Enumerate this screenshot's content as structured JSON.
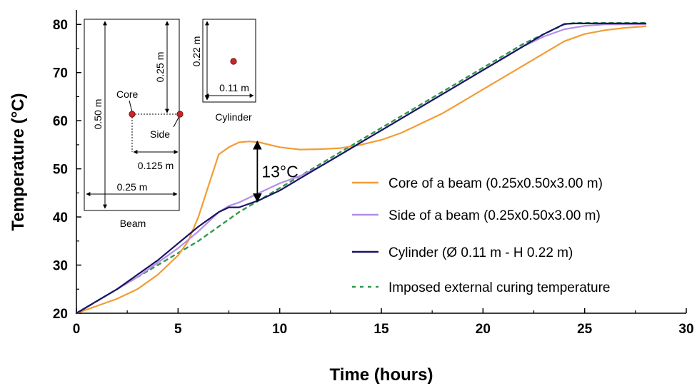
{
  "chart_data": {
    "type": "line",
    "xlabel": "Time (hours)",
    "ylabel": "Temperature (°C)",
    "xlim": [
      0,
      30
    ],
    "ylim": [
      20,
      83
    ],
    "xticks": [
      0,
      5,
      10,
      15,
      20,
      25,
      30
    ],
    "yticks": [
      20,
      30,
      40,
      50,
      60,
      70,
      80
    ],
    "grid": false,
    "legend_position": "right",
    "series": [
      {
        "name": "Core of a beam (0.25x0.50x3.00 m)",
        "color": "#f39c34",
        "dash": "solid",
        "x": [
          0,
          1,
          2,
          3,
          4,
          5,
          5.5,
          6,
          6.5,
          7,
          7.5,
          8,
          8.5,
          9,
          10,
          11,
          12,
          13,
          14,
          15,
          16,
          17,
          18,
          19,
          20,
          21,
          22,
          23,
          24,
          25,
          26,
          27,
          28
        ],
        "y": [
          20,
          21.5,
          23,
          25,
          28,
          32,
          35,
          40,
          46.5,
          53,
          54.5,
          55.5,
          55.7,
          55.5,
          54.5,
          54,
          54.1,
          54.3,
          55,
          56,
          57.5,
          59.5,
          61.5,
          64,
          66.5,
          69,
          71.5,
          74,
          76.5,
          78,
          78.8,
          79.3,
          79.6
        ]
      },
      {
        "name": "Side of a beam (0.25x0.50x3.00 m)",
        "color": "#b38ee8",
        "dash": "solid",
        "x": [
          0,
          1,
          2,
          3,
          4,
          5,
          6,
          7,
          7.5,
          8,
          9,
          10,
          11,
          12,
          13,
          14,
          15,
          16,
          17,
          18,
          19,
          20,
          21,
          22,
          23,
          24,
          25,
          26,
          27,
          28
        ],
        "y": [
          20,
          22.5,
          25,
          27.5,
          30.5,
          33.5,
          37,
          41,
          42.3,
          43,
          45,
          47,
          48.5,
          50.5,
          53,
          55.5,
          58,
          60.5,
          63,
          65.5,
          68,
          70.5,
          73,
          75.5,
          77.5,
          79,
          79.7,
          80,
          80,
          80
        ]
      },
      {
        "name": "Cylinder (Ø 0.11 m - H 0.22 m)",
        "color": "#1a1466",
        "dash": "solid",
        "x": [
          0,
          1,
          2,
          3,
          4,
          5,
          6,
          7,
          7.5,
          8,
          9,
          10,
          11,
          12,
          13,
          14,
          15,
          16,
          17,
          18,
          19,
          20,
          21,
          22,
          23,
          24,
          24.5,
          25,
          26,
          27,
          28
        ],
        "y": [
          20,
          22.5,
          25,
          28,
          31,
          34.5,
          38,
          41,
          42,
          42,
          43.5,
          45.5,
          48,
          50.5,
          53,
          55.5,
          58,
          60.5,
          63,
          65.5,
          68,
          70.5,
          73,
          75.5,
          78,
          80.1,
          80.2,
          80.2,
          80.2,
          80.2,
          80.2
        ]
      },
      {
        "name": "Imposed external curing temperature",
        "color": "#2e9a4a",
        "dash": "dashed",
        "x": [
          0,
          2,
          4,
          6,
          8,
          10,
          12,
          14,
          16,
          18,
          20,
          22,
          24,
          24.5,
          25,
          26,
          27,
          28
        ],
        "y": [
          20,
          25,
          30,
          35,
          41,
          46,
          51,
          56,
          61,
          66,
          71,
          76,
          80,
          80.3,
          80.3,
          80.3,
          80.3,
          80.3
        ]
      }
    ],
    "annotations": [
      {
        "text": "13°C",
        "x": 8.9,
        "y_from": 43.2,
        "y_to": 55.7
      }
    ],
    "insets": {
      "beam": {
        "caption": "Beam",
        "height_label": "0.50 m",
        "width_label": "0.25 m",
        "depth_label": "0.25 m",
        "offset_label": "0.125 m",
        "core_label": "Core",
        "side_label": "Side"
      },
      "cylinder": {
        "caption": "Cylinder",
        "height_label": "0.22 m",
        "diameter_label": "0.11 m"
      }
    }
  }
}
